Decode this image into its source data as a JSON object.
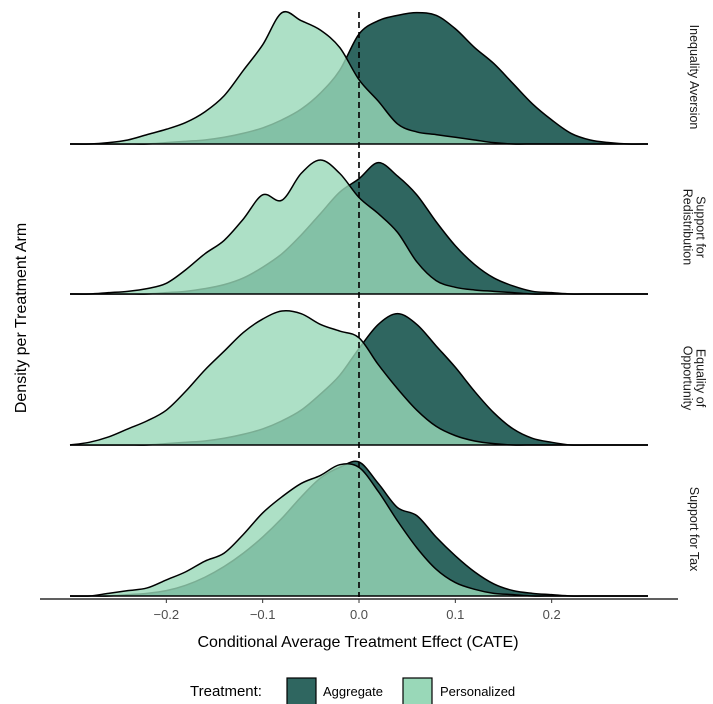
{
  "chart_data": {
    "type": "area",
    "xlabel": "Conditional Average Treatment Effect (CATE)",
    "ylabel": "Density per Treatment Arm",
    "xlim": [
      -0.3,
      0.3
    ],
    "x_ticks": [
      -0.2,
      -0.1,
      0.0,
      0.1,
      0.2
    ],
    "x_tick_labels": [
      "−0.2",
      "−0.1",
      "0.0",
      "0.1",
      "0.2"
    ],
    "reference_line": 0.0,
    "grid": false,
    "legend": {
      "title": "Treatment:",
      "position": "bottom",
      "entries": [
        {
          "name": "Aggregate",
          "color": "#2f6660"
        },
        {
          "name": "Personalized",
          "color": "#99d8b8"
        }
      ]
    },
    "x": [
      -0.3,
      -0.28,
      -0.26,
      -0.24,
      -0.22,
      -0.2,
      -0.18,
      -0.16,
      -0.14,
      -0.12,
      -0.1,
      -0.08,
      -0.06,
      -0.04,
      -0.02,
      0.0,
      0.02,
      0.04,
      0.06,
      0.08,
      0.1,
      0.12,
      0.14,
      0.16,
      0.18,
      0.2,
      0.22,
      0.24,
      0.26,
      0.28,
      0.3
    ],
    "facets": [
      {
        "label": "Inequality Aversion",
        "series": [
          {
            "name": "Aggregate",
            "values": [
              0,
              0,
              0,
              0,
              0,
              0.01,
              0.02,
              0.03,
              0.05,
              0.08,
              0.12,
              0.18,
              0.26,
              0.38,
              0.55,
              0.82,
              0.92,
              0.96,
              0.98,
              0.96,
              0.86,
              0.72,
              0.6,
              0.45,
              0.3,
              0.18,
              0.08,
              0.03,
              0.01,
              0,
              0
            ]
          },
          {
            "name": "Personalized",
            "values": [
              0,
              0,
              0.01,
              0.03,
              0.07,
              0.11,
              0.16,
              0.24,
              0.36,
              0.55,
              0.74,
              0.98,
              0.92,
              0.85,
              0.72,
              0.48,
              0.32,
              0.15,
              0.09,
              0.07,
              0.05,
              0.03,
              0.01,
              0,
              0,
              0,
              0,
              0,
              0,
              0,
              0
            ]
          }
        ]
      },
      {
        "label": "Support for Redistribution",
        "series": [
          {
            "name": "Aggregate",
            "values": [
              0,
              0,
              0,
              0,
              0,
              0.01,
              0.02,
              0.04,
              0.07,
              0.12,
              0.2,
              0.3,
              0.44,
              0.6,
              0.76,
              0.86,
              0.98,
              0.88,
              0.74,
              0.54,
              0.36,
              0.22,
              0.12,
              0.06,
              0.02,
              0.01,
              0,
              0,
              0,
              0,
              0
            ]
          },
          {
            "name": "Personalized",
            "values": [
              0,
              0,
              0.01,
              0.02,
              0.04,
              0.08,
              0.18,
              0.3,
              0.4,
              0.56,
              0.74,
              0.7,
              0.9,
              1.0,
              0.9,
              0.72,
              0.6,
              0.46,
              0.24,
              0.1,
              0.05,
              0.03,
              0.02,
              0.01,
              0,
              0,
              0,
              0,
              0,
              0,
              0
            ]
          }
        ]
      },
      {
        "label": "Equality of Opportunity",
        "series": [
          {
            "name": "Aggregate",
            "values": [
              0,
              0,
              0,
              0,
              0,
              0.01,
              0.02,
              0.03,
              0.05,
              0.08,
              0.12,
              0.18,
              0.26,
              0.38,
              0.52,
              0.72,
              0.9,
              0.98,
              0.9,
              0.74,
              0.58,
              0.4,
              0.24,
              0.12,
              0.05,
              0.02,
              0,
              0,
              0,
              0,
              0
            ]
          },
          {
            "name": "Personalized",
            "values": [
              0,
              0.02,
              0.06,
              0.12,
              0.18,
              0.26,
              0.4,
              0.56,
              0.7,
              0.84,
              0.94,
              1.0,
              0.98,
              0.9,
              0.85,
              0.8,
              0.6,
              0.42,
              0.26,
              0.14,
              0.07,
              0.03,
              0.01,
              0,
              0,
              0,
              0,
              0,
              0,
              0,
              0
            ]
          }
        ]
      },
      {
        "label": "Support for Tax",
        "series": [
          {
            "name": "Aggregate",
            "values": [
              0,
              0,
              0,
              0.01,
              0.02,
              0.04,
              0.08,
              0.14,
              0.22,
              0.32,
              0.44,
              0.58,
              0.74,
              0.88,
              0.96,
              1.0,
              0.84,
              0.66,
              0.6,
              0.44,
              0.3,
              0.18,
              0.09,
              0.04,
              0.02,
              0.01,
              0,
              0,
              0,
              0,
              0
            ]
          },
          {
            "name": "Personalized",
            "values": [
              0,
              0,
              0.02,
              0.04,
              0.06,
              0.12,
              0.18,
              0.26,
              0.32,
              0.46,
              0.62,
              0.74,
              0.84,
              0.9,
              0.98,
              0.96,
              0.78,
              0.56,
              0.36,
              0.2,
              0.1,
              0.05,
              0.02,
              0.01,
              0,
              0,
              0,
              0,
              0,
              0,
              0
            ]
          }
        ]
      }
    ]
  }
}
